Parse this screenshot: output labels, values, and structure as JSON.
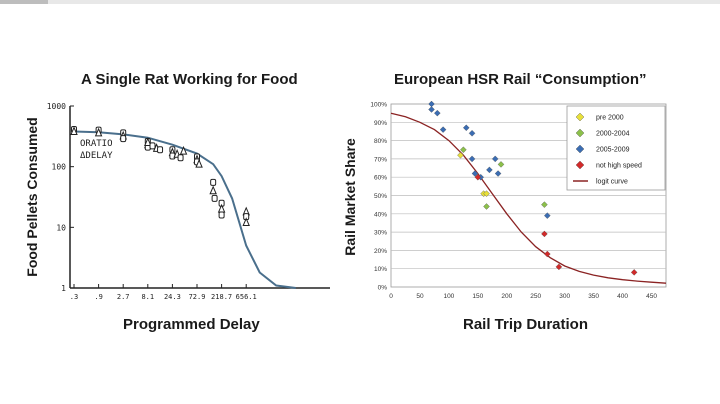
{
  "slide": {
    "accent_color": "#bdbdbd"
  },
  "chart_data": [
    {
      "type": "scatter",
      "title": "A Single Rat Working for Food",
      "xlabel": "Programmed Delay",
      "ylabel": "Food Pellets Consumed",
      "x_scale": "log3",
      "y_scale": "log",
      "x_ticks": [
        ".3",
        ".9",
        "2.7",
        "8.1",
        "24.3",
        "72.9",
        "218.7",
        "656.1"
      ],
      "y_ticks": [
        "1000",
        "100",
        "10",
        "1"
      ],
      "legend": [
        "ORATIO",
        "ΔDELAY"
      ],
      "curve_color": "#4a6f8c",
      "curve": {
        "x": [
          0.3,
          0.9,
          2.7,
          8.1,
          24.3,
          72.9,
          150,
          218.7,
          350,
          656.1,
          1200,
          2500,
          6000
        ],
        "y": [
          380,
          370,
          340,
          300,
          230,
          165,
          110,
          70,
          30,
          5,
          1.8,
          1.1,
          1.0
        ]
      },
      "points": {
        "x": [
          0.3,
          0.3,
          0.9,
          0.9,
          2.7,
          2.7,
          2.7,
          8.1,
          8.1,
          8.1,
          8.1,
          10,
          12,
          14,
          24.3,
          24.3,
          24.3,
          30,
          35,
          40,
          72.9,
          72.9,
          72.9,
          80,
          150,
          150,
          160,
          218.7,
          218.7,
          218.7,
          656.1,
          656.1,
          656.1
        ],
        "y": [
          410,
          380,
          400,
          360,
          360,
          320,
          290,
          260,
          230,
          210,
          250,
          220,
          200,
          190,
          190,
          170,
          150,
          160,
          140,
          180,
          145,
          130,
          120,
          110,
          55,
          40,
          30,
          25,
          20,
          16,
          18,
          15,
          12
        ],
        "markers": [
          "o",
          "t",
          "o",
          "t",
          "o",
          "t",
          "o",
          "o",
          "t",
          "o",
          "t",
          "o",
          "t",
          "o",
          "o",
          "t",
          "o",
          "t",
          "o",
          "t",
          "o",
          "t",
          "o",
          "t",
          "o",
          "t",
          "o",
          "o",
          "t",
          "o",
          "t",
          "o",
          "t"
        ]
      }
    },
    {
      "type": "scatter",
      "title": "European HSR Rail “Consumption”",
      "xlabel": "Rail Trip Duration",
      "ylabel": "Rail Market Share",
      "xlim": [
        0,
        475
      ],
      "ylim": [
        0,
        100
      ],
      "x_ticks": [
        0,
        50,
        100,
        150,
        200,
        250,
        300,
        350,
        400,
        450
      ],
      "y_ticks": [
        "0%",
        "10%",
        "20%",
        "30%",
        "40%",
        "50%",
        "60%",
        "70%",
        "80%",
        "90%",
        "100%"
      ],
      "grid": true,
      "legend_position": "top-right",
      "series": [
        {
          "name": "pre 2000",
          "color": "#e8e03a",
          "marker": "diamond",
          "x": [
            120,
            160,
            165
          ],
          "y": [
            72,
            51,
            51
          ]
        },
        {
          "name": "2000-2004",
          "color": "#8cc04a",
          "marker": "diamond",
          "x": [
            125,
            165,
            190,
            265
          ],
          "y": [
            75,
            44,
            67,
            45
          ]
        },
        {
          "name": "2005-2009",
          "color": "#3b6db3",
          "marker": "diamond",
          "x": [
            70,
            70,
            80,
            90,
            130,
            140,
            140,
            145,
            155,
            170,
            180,
            185,
            270
          ],
          "y": [
            100,
            97,
            95,
            86,
            87,
            84,
            70,
            62,
            60,
            64,
            70,
            62,
            39
          ]
        },
        {
          "name": "not high speed",
          "color": "#d22a2a",
          "marker": "diamond",
          "x": [
            150,
            265,
            270,
            290,
            420
          ],
          "y": [
            60,
            29,
            18,
            11,
            8
          ]
        }
      ],
      "curve": {
        "name": "logit curve",
        "color": "#8b2323",
        "x": [
          0,
          25,
          50,
          75,
          100,
          125,
          150,
          175,
          200,
          225,
          250,
          275,
          300,
          325,
          350,
          375,
          400,
          425,
          450,
          475
        ],
        "y": [
          95,
          93,
          90,
          86,
          80,
          72,
          62,
          51,
          40,
          30,
          22,
          16,
          11.5,
          8.5,
          6.5,
          5,
          4,
          3.2,
          2.6,
          2.1
        ]
      }
    }
  ]
}
